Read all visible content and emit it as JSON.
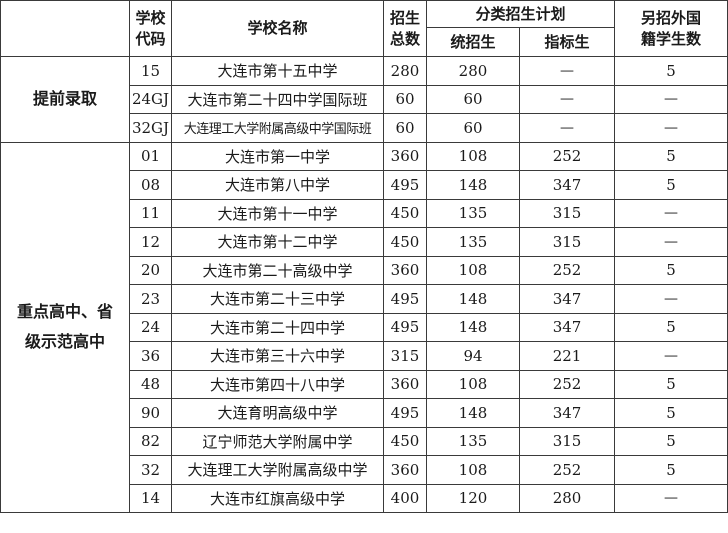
{
  "header": {
    "code": "学校代码",
    "code_l1": "学校",
    "code_l2": "代码",
    "name": "学校名称",
    "total_l1": "招生",
    "total_l2": "总数",
    "plan": "分类招生计划",
    "unified": "统招生",
    "quota": "指标生",
    "foreign_l1": "另招外国",
    "foreign_l2": "籍学生数"
  },
  "groups": [
    {
      "label": "提前录取",
      "rows": [
        {
          "code": "15",
          "name": "大连市第十五中学",
          "total": "280",
          "unified": "280",
          "quota": "—",
          "foreign": "5"
        },
        {
          "code": "24GJ",
          "name": "大连市第二十四中学国际班",
          "total": "60",
          "unified": "60",
          "quota": "—",
          "foreign": "—"
        },
        {
          "code": "32GJ",
          "name": "大连理工大学附属高级中学国际班",
          "total": "60",
          "unified": "60",
          "quota": "—",
          "foreign": "—"
        }
      ]
    },
    {
      "label_l1": "重点高中、省",
      "label_l2": "级示范高中",
      "rows": [
        {
          "code": "01",
          "name": "大连市第一中学",
          "total": "360",
          "unified": "108",
          "quota": "252",
          "foreign": "5"
        },
        {
          "code": "08",
          "name": "大连市第八中学",
          "total": "495",
          "unified": "148",
          "quota": "347",
          "foreign": "5"
        },
        {
          "code": "11",
          "name": "大连市第十一中学",
          "total": "450",
          "unified": "135",
          "quota": "315",
          "foreign": "—"
        },
        {
          "code": "12",
          "name": "大连市第十二中学",
          "total": "450",
          "unified": "135",
          "quota": "315",
          "foreign": "—"
        },
        {
          "code": "20",
          "name": "大连市第二十高级中学",
          "total": "360",
          "unified": "108",
          "quota": "252",
          "foreign": "5"
        },
        {
          "code": "23",
          "name": "大连市第二十三中学",
          "total": "495",
          "unified": "148",
          "quota": "347",
          "foreign": "—"
        },
        {
          "code": "24",
          "name": "大连市第二十四中学",
          "total": "495",
          "unified": "148",
          "quota": "347",
          "foreign": "5"
        },
        {
          "code": "36",
          "name": "大连市第三十六中学",
          "total": "315",
          "unified": "94",
          "quota": "221",
          "foreign": "—"
        },
        {
          "code": "48",
          "name": "大连市第四十八中学",
          "total": "360",
          "unified": "108",
          "quota": "252",
          "foreign": "5"
        },
        {
          "code": "90",
          "name": "大连育明高级中学",
          "total": "495",
          "unified": "148",
          "quota": "347",
          "foreign": "5"
        },
        {
          "code": "82",
          "name": "辽宁师范大学附属中学",
          "total": "450",
          "unified": "135",
          "quota": "315",
          "foreign": "5"
        },
        {
          "code": "32",
          "name": "大连理工大学附属高级中学",
          "total": "360",
          "unified": "108",
          "quota": "252",
          "foreign": "5"
        },
        {
          "code": "14",
          "name": "大连市红旗高级中学",
          "total": "400",
          "unified": "120",
          "quota": "280",
          "foreign": "—"
        }
      ]
    }
  ]
}
